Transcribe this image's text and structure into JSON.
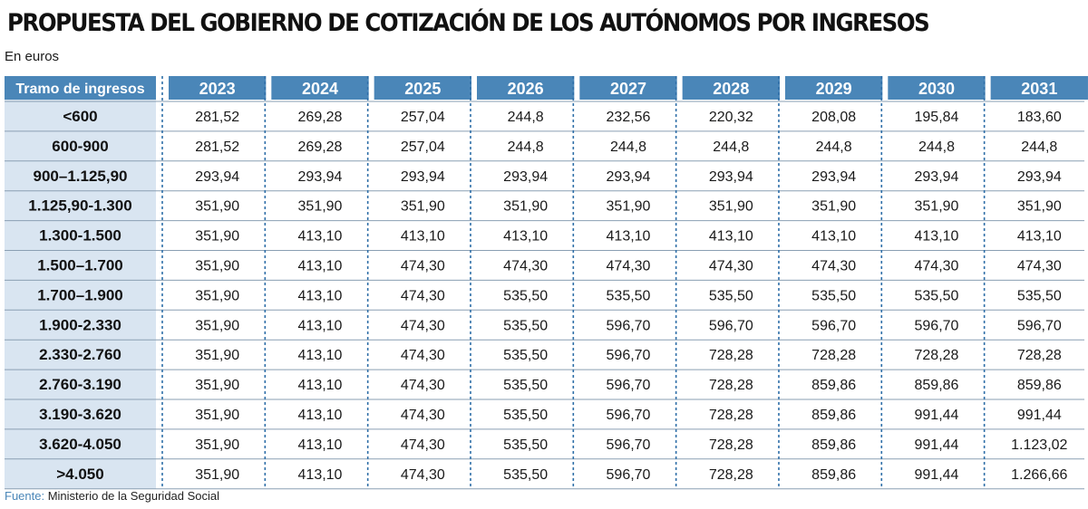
{
  "title": "PROPUESTA DEL GOBIERNO DE COTIZACIÓN DE LOS AUTÓNOMOS POR INGRESOS",
  "subtitle": "En euros",
  "source": {
    "label": "Fuente:",
    "text": " Ministerio de la Seguridad Social"
  },
  "colors": {
    "header_fill": "#4a86b8",
    "label_column": "#d9e5f1",
    "row_separator": "#8a9fb3",
    "dotted_separator": "#2f6fa8"
  },
  "chart_data": {
    "type": "table",
    "title": "PROPUESTA DEL GOBIERNO DE COTIZACIÓN DE LOS AUTÓNOMOS POR INGRESOS",
    "unit": "En euros",
    "header_label": "Tramo de ingresos",
    "columns": [
      "2023",
      "2024",
      "2025",
      "2026",
      "2027",
      "2028",
      "2029",
      "2030",
      "2031"
    ],
    "rows": [
      {
        "label": "<600",
        "values": [
          "281,52",
          "269,28",
          "257,04",
          "244,8",
          "232,56",
          "220,32",
          "208,08",
          "195,84",
          "183,60"
        ]
      },
      {
        "label": "600-900",
        "values": [
          "281,52",
          "269,28",
          "257,04",
          "244,8",
          "244,8",
          "244,8",
          "244,8",
          "244,8",
          "244,8"
        ]
      },
      {
        "label": "900–1.125,90",
        "values": [
          "293,94",
          "293,94",
          "293,94",
          "293,94",
          "293,94",
          "293,94",
          "293,94",
          "293,94",
          "293,94"
        ]
      },
      {
        "label": "1.125,90-1.300",
        "values": [
          "351,90",
          "351,90",
          "351,90",
          "351,90",
          "351,90",
          "351,90",
          "351,90",
          "351,90",
          "351,90"
        ]
      },
      {
        "label": "1.300-1.500",
        "values": [
          "351,90",
          "413,10",
          "413,10",
          "413,10",
          "413,10",
          "413,10",
          "413,10",
          "413,10",
          "413,10"
        ]
      },
      {
        "label": "1.500–1.700",
        "values": [
          "351,90",
          "413,10",
          "474,30",
          "474,30",
          "474,30",
          "474,30",
          "474,30",
          "474,30",
          "474,30"
        ]
      },
      {
        "label": "1.700–1.900",
        "values": [
          "351,90",
          "413,10",
          "474,30",
          "535,50",
          "535,50",
          "535,50",
          "535,50",
          "535,50",
          "535,50"
        ]
      },
      {
        "label": "1.900-2.330",
        "values": [
          "351,90",
          "413,10",
          "474,30",
          "535,50",
          "596,70",
          "596,70",
          "596,70",
          "596,70",
          "596,70"
        ]
      },
      {
        "label": "2.330-2.760",
        "values": [
          "351,90",
          "413,10",
          "474,30",
          "535,50",
          "596,70",
          "728,28",
          "728,28",
          "728,28",
          "728,28"
        ]
      },
      {
        "label": "2.760-3.190",
        "values": [
          "351,90",
          "413,10",
          "474,30",
          "535,50",
          "596,70",
          "728,28",
          "859,86",
          "859,86",
          "859,86"
        ]
      },
      {
        "label": "3.190-3.620",
        "values": [
          "351,90",
          "413,10",
          "474,30",
          "535,50",
          "596,70",
          "728,28",
          "859,86",
          "991,44",
          "991,44"
        ]
      },
      {
        "label": "3.620-4.050",
        "values": [
          "351,90",
          "413,10",
          "474,30",
          "535,50",
          "596,70",
          "728,28",
          "859,86",
          "991,44",
          "1.123,02"
        ]
      },
      {
        "label": ">4.050",
        "values": [
          "351,90",
          "413,10",
          "474,30",
          "535,50",
          "596,70",
          "728,28",
          "859,86",
          "991,44",
          "1.266,66"
        ]
      }
    ],
    "source": "Fuente: Ministerio de la Seguridad Social"
  }
}
